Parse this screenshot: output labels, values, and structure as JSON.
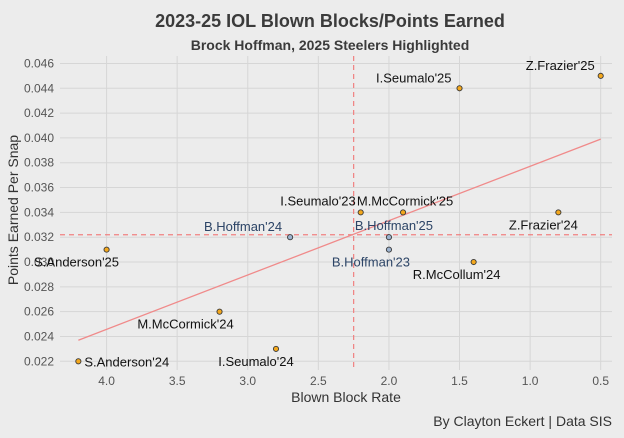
{
  "chart_data": {
    "type": "scatter",
    "title": "2023-25 IOL Blown Blocks/Points Earned",
    "subtitle": "Brock Hoffman, 2025 Steelers Highlighted",
    "xlabel": "Blown Block Rate",
    "ylabel": "Points Earned Per Snap",
    "caption": "By Clayton Eckert | Data SIS",
    "x_reversed": true,
    "xlim": [
      4.33,
      0.42
    ],
    "ylim": [
      0.0213,
      0.0466
    ],
    "x_ticks": [
      {
        "value": 4.0,
        "label": "4.0"
      },
      {
        "value": 3.5,
        "label": "3.5"
      },
      {
        "value": 3.0,
        "label": "3.0"
      },
      {
        "value": 2.5,
        "label": "2.5"
      },
      {
        "value": 2.0,
        "label": "2.0"
      },
      {
        "value": 1.5,
        "label": "1.5"
      },
      {
        "value": 1.0,
        "label": "1.0"
      },
      {
        "value": 0.5,
        "label": "0.5"
      }
    ],
    "y_ticks": [
      {
        "value": 0.022,
        "label": "0.022"
      },
      {
        "value": 0.024,
        "label": "0.024"
      },
      {
        "value": 0.026,
        "label": "0.026"
      },
      {
        "value": 0.028,
        "label": "0.028"
      },
      {
        "value": 0.03,
        "label": "0.030"
      },
      {
        "value": 0.032,
        "label": "0.032"
      },
      {
        "value": 0.034,
        "label": "0.034"
      },
      {
        "value": 0.036,
        "label": "0.036"
      },
      {
        "value": 0.038,
        "label": "0.038"
      },
      {
        "value": 0.04,
        "label": "0.040"
      },
      {
        "value": 0.042,
        "label": "0.042"
      },
      {
        "value": 0.044,
        "label": "0.044"
      },
      {
        "value": 0.046,
        "label": "0.046"
      }
    ],
    "grid": true,
    "mean_lines": {
      "x": 2.25,
      "y": 0.0322,
      "color": "#f08080"
    },
    "trend_line": {
      "x": [
        4.2,
        0.5
      ],
      "y": [
        0.0237,
        0.0399
      ],
      "color": "#f08a8a"
    },
    "points": [
      {
        "label": "Z.Frazier'25",
        "x": 0.5,
        "y": 0.045,
        "highlight": false,
        "anchor": "end",
        "dx": -6,
        "dy": -6
      },
      {
        "label": "I.Seumalo'25",
        "x": 1.5,
        "y": 0.044,
        "highlight": false,
        "anchor": "end",
        "dx": -8,
        "dy": -6
      },
      {
        "label": "M.McCormick'25",
        "x": 1.9,
        "y": 0.034,
        "highlight": false,
        "anchor": "middle",
        "dx": 2,
        "dy": -7
      },
      {
        "label": "Z.Frazier'24",
        "x": 0.8,
        "y": 0.034,
        "highlight": false,
        "anchor": "middle",
        "dx": -15,
        "dy": 17
      },
      {
        "label": "I.Seumalo'23",
        "x": 2.2,
        "y": 0.034,
        "highlight": false,
        "anchor": "end",
        "dx": -5,
        "dy": -7
      },
      {
        "label": "B.Hoffman'24",
        "x": 2.7,
        "y": 0.032,
        "highlight": true,
        "anchor": "end",
        "dx": -8,
        "dy": -6
      },
      {
        "label": "B.Hoffman'25",
        "x": 2.0,
        "y": 0.032,
        "highlight": true,
        "anchor": "middle",
        "dx": 5,
        "dy": -7
      },
      {
        "label": "B.Hoffman'23",
        "x": 2.0,
        "y": 0.031,
        "highlight": true,
        "anchor": "middle",
        "dx": -18,
        "dy": 17
      },
      {
        "label": "S.Anderson'25",
        "x": 4.0,
        "y": 0.031,
        "highlight": false,
        "anchor": "middle",
        "dx": -30,
        "dy": 17
      },
      {
        "label": "R.McCollum'24",
        "x": 1.4,
        "y": 0.03,
        "highlight": false,
        "anchor": "middle",
        "dx": -17,
        "dy": 17
      },
      {
        "label": "M.McCormick'24",
        "x": 3.2,
        "y": 0.026,
        "highlight": false,
        "anchor": "middle",
        "dx": -34,
        "dy": 17
      },
      {
        "label": "I.Seumalo'24",
        "x": 2.8,
        "y": 0.023,
        "highlight": false,
        "anchor": "middle",
        "dx": -20,
        "dy": 17
      },
      {
        "label": "S.Anderson'24",
        "x": 4.2,
        "y": 0.022,
        "highlight": false,
        "anchor": "start",
        "dx": 6,
        "dy": 5
      }
    ],
    "colors": {
      "point_fill": "#f4a81d",
      "highlight_fill": "#9db3cf",
      "label": "#111111",
      "highlight_label": "#2c4466",
      "grid": "#d6d6d6"
    }
  }
}
